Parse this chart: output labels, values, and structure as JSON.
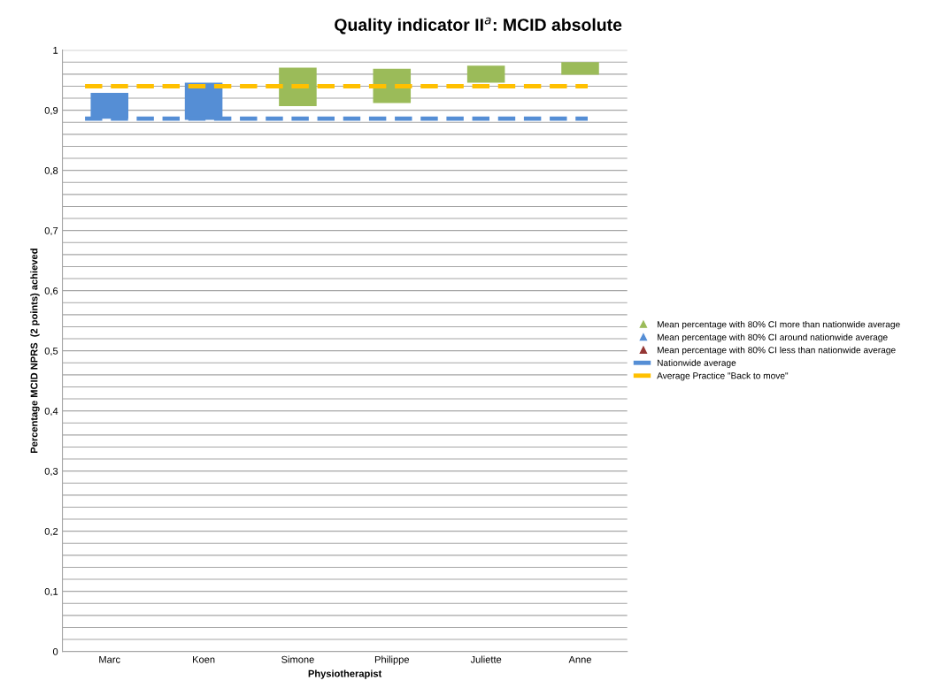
{
  "chart_data": {
    "type": "bar",
    "title": "Quality indicator II$^{a}$: MCID absolute",
    "xlabel": "Physiotherapist",
    "ylabel": "Percentage MCID NPRS  (2 points) achieved",
    "categories": [
      "Marc",
      "Koen",
      "Simone",
      "Philippe",
      "Juliette",
      "Anne"
    ],
    "series": [
      {
        "name": "Mean percentage with 80% CI more than nationwide average",
        "color": "#9bbb59",
        "base": [
          null,
          null,
          0.907,
          0.912,
          0.946,
          0.959
        ],
        "values": [
          null,
          null,
          0.064,
          0.057,
          0.028,
          0.021
        ]
      },
      {
        "name": "Mean percentage with 80% CI around nationwide average",
        "color": "#558ed5",
        "base": [
          0.886,
          0.884,
          null,
          null,
          null,
          null
        ],
        "values": [
          0.043,
          0.062,
          null,
          null,
          null,
          null
        ]
      },
      {
        "name": "Mean percentage with 80% CI less than nationwide average",
        "color": "#953735",
        "base": [
          null,
          null,
          null,
          null,
          null,
          null
        ],
        "values": [
          null,
          null,
          null,
          null,
          null,
          null
        ]
      }
    ],
    "marker": "triangle",
    "ref_lines": [
      {
        "axis": "y",
        "value": 0.886,
        "label": "Nationwide average",
        "color": "#558ed5",
        "line_style": "dashed"
      },
      {
        "axis": "y",
        "value": 0.94,
        "label": "Average Practice \"Back to move\"",
        "color": "#ffc000",
        "line_style": "dashed"
      }
    ],
    "ylim": [
      0,
      1
    ],
    "yticks": [
      {
        "value": 0,
        "label": "0"
      },
      {
        "value": 0.02,
        "label": null
      },
      {
        "value": 0.04,
        "label": null
      },
      {
        "value": 0.06,
        "label": null
      },
      {
        "value": 0.08,
        "label": null
      },
      {
        "value": 0.1,
        "label": "0,1"
      },
      {
        "value": 0.12,
        "label": null
      },
      {
        "value": 0.14,
        "label": null
      },
      {
        "value": 0.16,
        "label": null
      },
      {
        "value": 0.18,
        "label": null
      },
      {
        "value": 0.2,
        "label": "0,2"
      },
      {
        "value": 0.22,
        "label": null
      },
      {
        "value": 0.24,
        "label": null
      },
      {
        "value": 0.26,
        "label": null
      },
      {
        "value": 0.28,
        "label": null
      },
      {
        "value": 0.3,
        "label": "0,3"
      },
      {
        "value": 0.32,
        "label": null
      },
      {
        "value": 0.34,
        "label": null
      },
      {
        "value": 0.36,
        "label": null
      },
      {
        "value": 0.38,
        "label": null
      },
      {
        "value": 0.4,
        "label": "0,4"
      },
      {
        "value": 0.42,
        "label": null
      },
      {
        "value": 0.44,
        "label": null
      },
      {
        "value": 0.46,
        "label": null
      },
      {
        "value": 0.48,
        "label": null
      },
      {
        "value": 0.5,
        "label": "0,5"
      },
      {
        "value": 0.52,
        "label": null
      },
      {
        "value": 0.54,
        "label": null
      },
      {
        "value": 0.56,
        "label": null
      },
      {
        "value": 0.58,
        "label": null
      },
      {
        "value": 0.6,
        "label": "0,6"
      },
      {
        "value": 0.62,
        "label": null
      },
      {
        "value": 0.64,
        "label": null
      },
      {
        "value": 0.66,
        "label": null
      },
      {
        "value": 0.68,
        "label": null
      },
      {
        "value": 0.7,
        "label": "0,7"
      },
      {
        "value": 0.72,
        "label": null
      },
      {
        "value": 0.74,
        "label": null
      },
      {
        "value": 0.76,
        "label": null
      },
      {
        "value": 0.78,
        "label": null
      },
      {
        "value": 0.8,
        "label": "0,8"
      },
      {
        "value": 0.82,
        "label": null
      },
      {
        "value": 0.84,
        "label": null
      },
      {
        "value": 0.86,
        "label": null
      },
      {
        "value": 0.88,
        "label": null
      },
      {
        "value": 0.9,
        "label": "0,9"
      },
      {
        "value": 0.92,
        "label": null
      },
      {
        "value": 0.94,
        "label": null
      },
      {
        "value": 0.96,
        "label": null
      },
      {
        "value": 0.98,
        "label": null
      },
      {
        "value": 1,
        "label": "1"
      }
    ],
    "grid": "y",
    "legend": "right"
  }
}
